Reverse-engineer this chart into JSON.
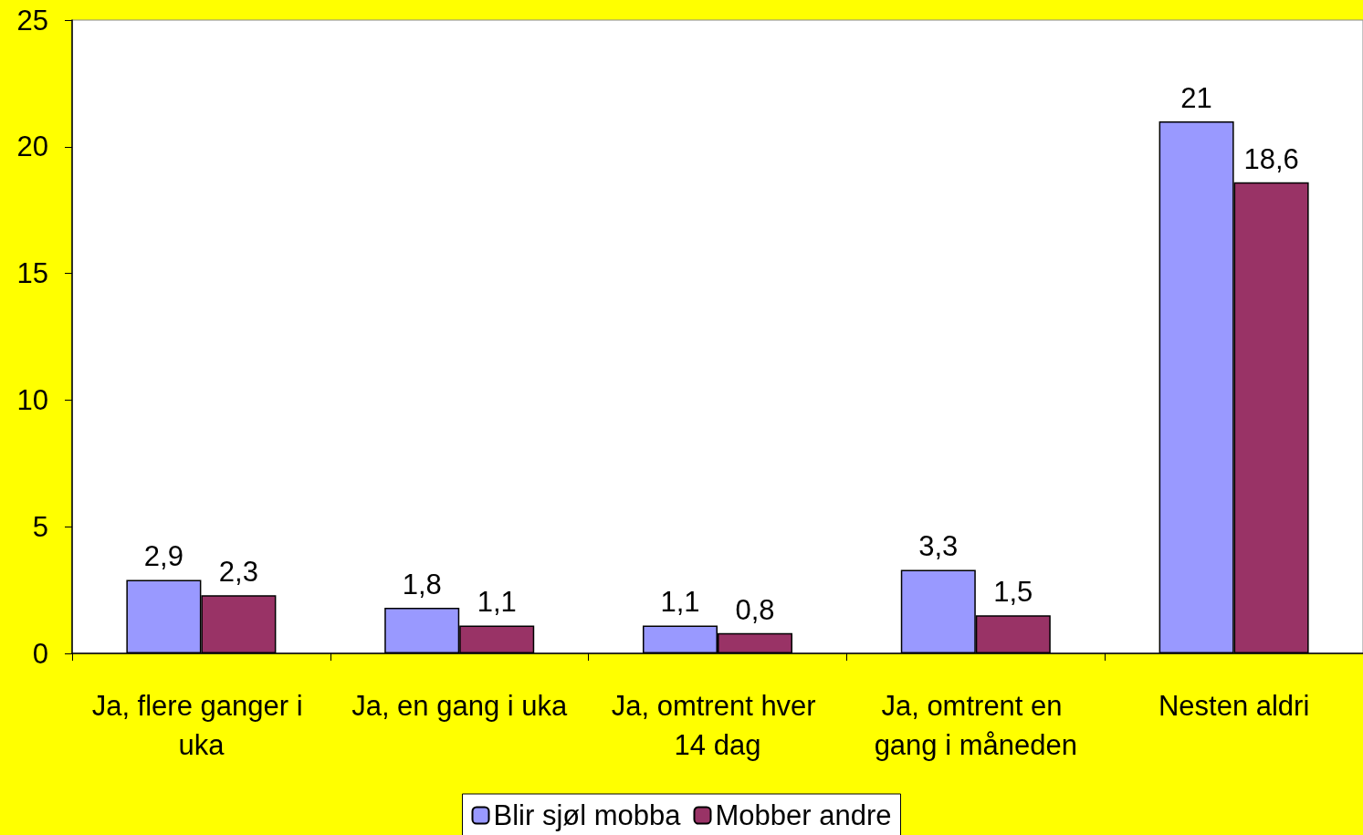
{
  "chart_data": {
    "type": "bar",
    "categories": [
      "Ja, flere ganger i uka",
      "Ja, en gang i uka",
      "Ja, omtrent hver 14 dag",
      "Ja, omtrent en gang i måneden",
      "Nesten aldri"
    ],
    "series": [
      {
        "name": "Blir sjøl mobba",
        "color": "#9999ff",
        "values": [
          2.9,
          1.8,
          1.1,
          3.3,
          21
        ],
        "value_labels": [
          "2,9",
          "1,8",
          "1,1",
          "3,3",
          "21"
        ]
      },
      {
        "name": "Mobber andre",
        "color": "#993366",
        "values": [
          2.3,
          1.1,
          0.8,
          1.5,
          18.6
        ],
        "value_labels": [
          "2,3",
          "1,1",
          "0,8",
          "1,5",
          "18,6"
        ]
      }
    ],
    "ylim": [
      0,
      25
    ],
    "yticks": [
      0,
      5,
      10,
      15,
      20,
      25
    ],
    "grid": false,
    "legend": "bottom"
  }
}
